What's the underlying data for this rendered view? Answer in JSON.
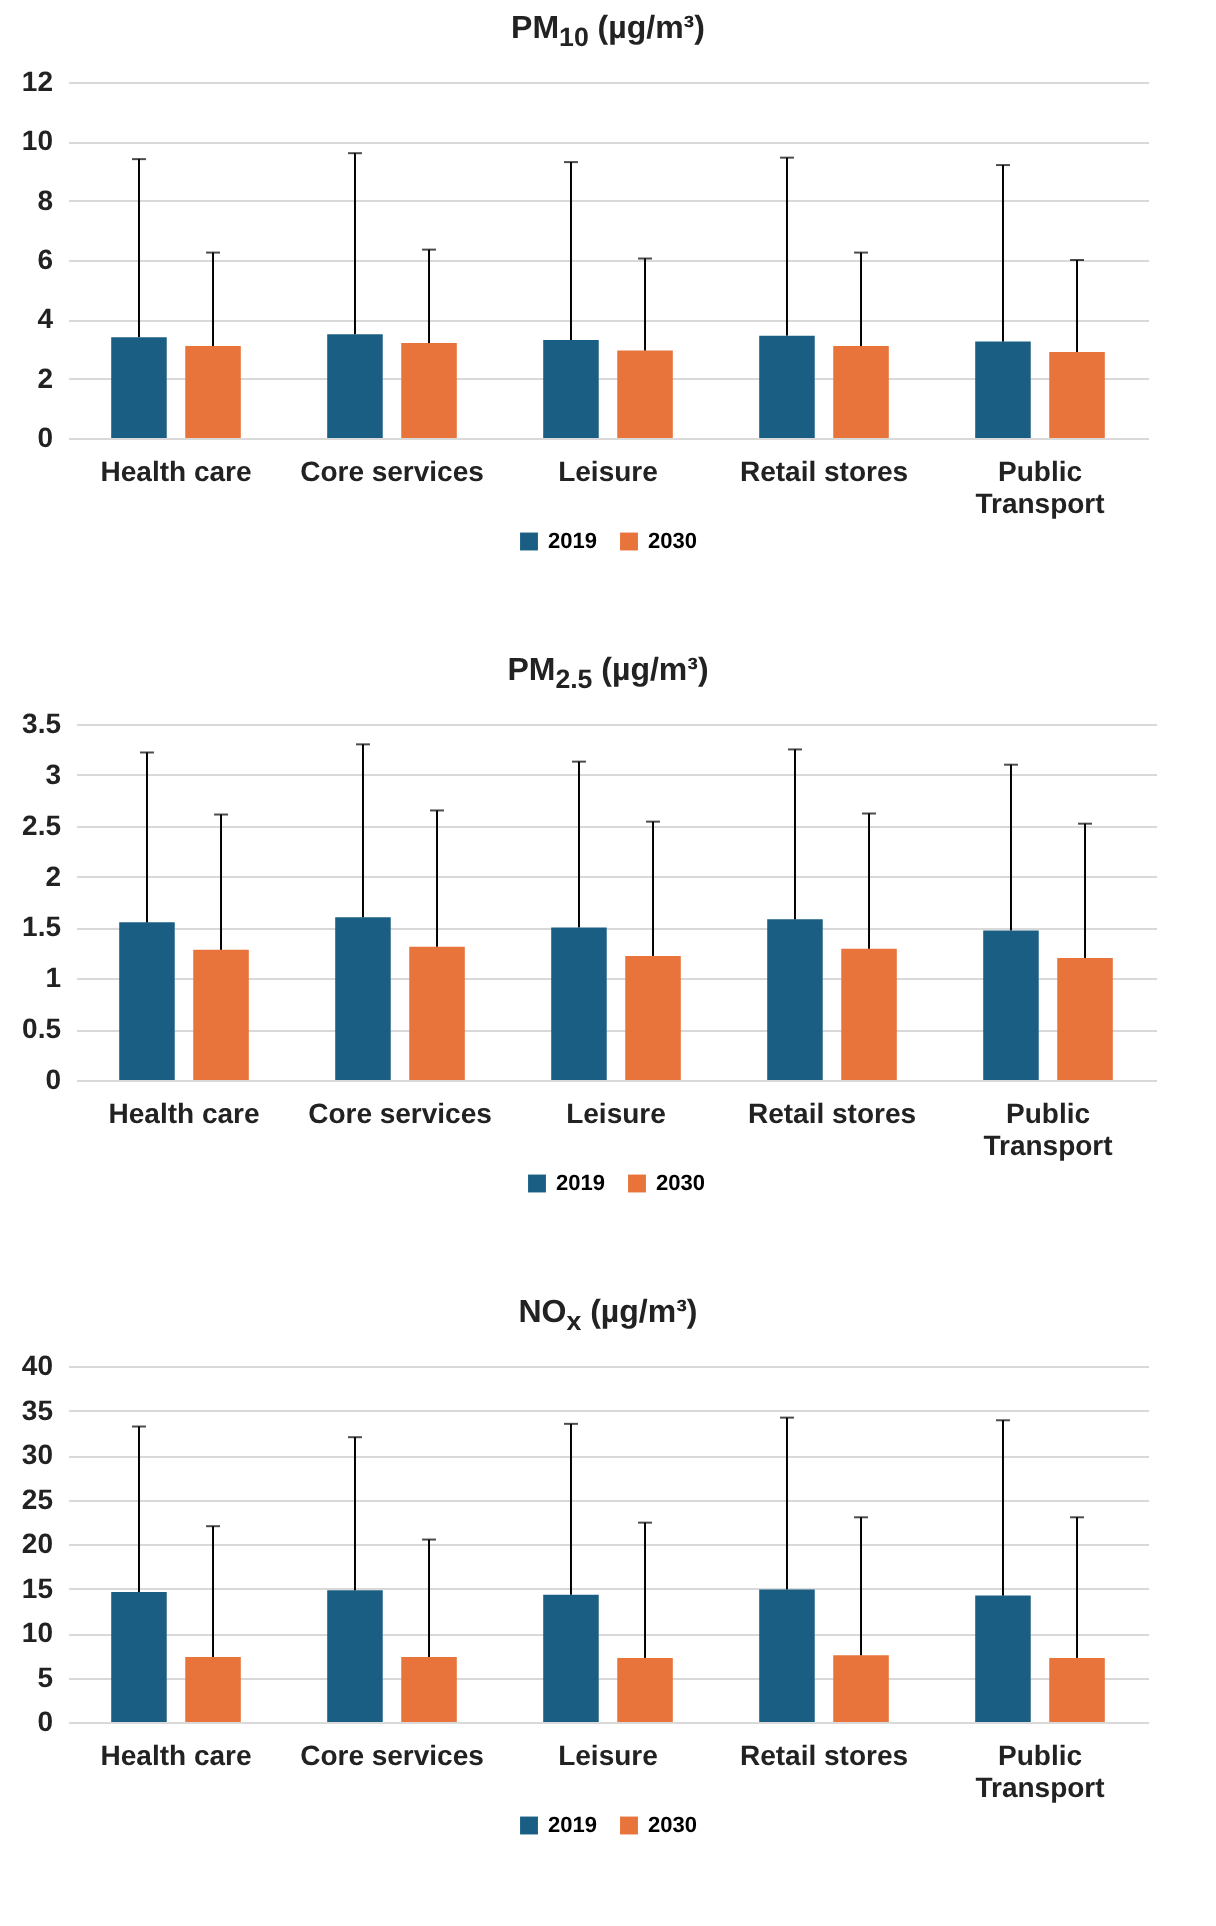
{
  "chart_data": [
    {
      "type": "bar",
      "title": "PM$_{10}$ (µg/m³)",
      "categories": [
        "Health care",
        "Core services",
        "Leisure",
        "Retail stores",
        "Public Transport"
      ],
      "series": [
        {
          "name": "2019",
          "color": "#1a5f83",
          "values": [
            3.4,
            3.5,
            3.3,
            3.45,
            3.25
          ],
          "errors": [
            [
              3.4,
              9.4
            ],
            [
              3.5,
              9.6
            ],
            [
              3.3,
              9.3
            ],
            [
              3.45,
              9.45
            ],
            [
              3.25,
              9.2
            ]
          ]
        },
        {
          "name": "2030",
          "color": "#e8743b",
          "values": [
            3.1,
            3.2,
            2.95,
            3.1,
            2.9
          ],
          "errors": [
            [
              3.1,
              6.25
            ],
            [
              3.2,
              6.35
            ],
            [
              2.95,
              6.05
            ],
            [
              3.1,
              6.25
            ],
            [
              2.9,
              6.0
            ]
          ]
        }
      ],
      "ylim": [
        0,
        12
      ],
      "yticks": [
        0,
        2,
        4,
        6,
        8,
        10,
        12
      ],
      "grid": "y",
      "legend": "bottom"
    },
    {
      "type": "bar",
      "title": "PM$_{2.5}$ (µg/m³)",
      "categories": [
        "Health care",
        "Core services",
        "Leisure",
        "Retail stores",
        "Public Transport"
      ],
      "series": [
        {
          "name": "2019",
          "color": "#1a5f83",
          "values": [
            1.55,
            1.6,
            1.5,
            1.58,
            1.47
          ],
          "errors": [
            [
              1.55,
              3.22
            ],
            [
              1.6,
              3.3
            ],
            [
              1.5,
              3.13
            ],
            [
              1.58,
              3.25
            ],
            [
              1.47,
              3.1
            ]
          ]
        },
        {
          "name": "2030",
          "color": "#e8743b",
          "values": [
            1.28,
            1.31,
            1.22,
            1.29,
            1.2
          ],
          "errors": [
            [
              1.28,
              2.61
            ],
            [
              1.31,
              2.65
            ],
            [
              1.22,
              2.54
            ],
            [
              1.29,
              2.62
            ],
            [
              1.2,
              2.52
            ]
          ]
        }
      ],
      "ylim": [
        0,
        3.5
      ],
      "yticks": [
        0,
        0.5,
        1,
        1.5,
        2,
        2.5,
        3,
        3.5
      ],
      "grid": "y",
      "legend": "bottom"
    },
    {
      "type": "bar",
      "title": "NO$_{x}$ (µg/m³)",
      "categories": [
        "Health care",
        "Core services",
        "Leisure",
        "Retail stores",
        "Public Transport"
      ],
      "series": [
        {
          "name": "2019",
          "color": "#1a5f83",
          "values": [
            14.6,
            14.8,
            14.3,
            14.9,
            14.2
          ],
          "errors": [
            [
              14.6,
              33.2
            ],
            [
              14.8,
              32
            ],
            [
              14.3,
              33.5
            ],
            [
              14.9,
              34.2
            ],
            [
              14.2,
              33.9
            ]
          ]
        },
        {
          "name": "2030",
          "color": "#e8743b",
          "values": [
            7.3,
            7.3,
            7.2,
            7.5,
            7.2
          ],
          "errors": [
            [
              7.3,
              22
            ],
            [
              7.3,
              20.5
            ],
            [
              7.2,
              22.4
            ],
            [
              7.5,
              23
            ],
            [
              7.2,
              23
            ]
          ]
        }
      ],
      "ylim": [
        0,
        40
      ],
      "yticks": [
        0,
        5,
        10,
        15,
        20,
        25,
        30,
        35,
        40
      ],
      "grid": "y",
      "legend": "bottom"
    }
  ]
}
